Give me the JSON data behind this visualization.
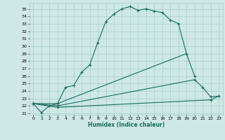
{
  "xlabel": "Humidex (Indice chaleur)",
  "xlim": [
    -0.5,
    23.5
  ],
  "ylim": [
    20.8,
    35.8
  ],
  "xticks": [
    0,
    1,
    2,
    3,
    4,
    5,
    6,
    7,
    8,
    9,
    10,
    11,
    12,
    13,
    14,
    15,
    16,
    17,
    18,
    19,
    20,
    21,
    22,
    23
  ],
  "yticks": [
    21,
    22,
    23,
    24,
    25,
    26,
    27,
    28,
    29,
    30,
    31,
    32,
    33,
    34,
    35
  ],
  "bg_color": "#cde8e5",
  "grid_color": "#aacfcc",
  "line_color": "#1a6b5e",
  "s1x": [
    0,
    1,
    2,
    3,
    4,
    5,
    6,
    7,
    8,
    9,
    10,
    11,
    12,
    13,
    14,
    15,
    16,
    17,
    18,
    19
  ],
  "s1y": [
    22.3,
    21.1,
    22.0,
    22.3,
    24.5,
    24.7,
    26.5,
    27.5,
    30.5,
    33.3,
    34.3,
    35.0,
    35.3,
    34.8,
    35.0,
    34.7,
    34.5,
    33.5,
    33.0,
    29.0
  ],
  "s2x": [
    0,
    3,
    19,
    20
  ],
  "s2y": [
    22.3,
    22.3,
    29.0,
    26.0
  ],
  "s3x": [
    0,
    3,
    20,
    21,
    22,
    23
  ],
  "s3y": [
    22.3,
    22.0,
    25.5,
    24.5,
    23.2,
    23.3
  ],
  "s4x": [
    0,
    3,
    22,
    23
  ],
  "s4y": [
    22.3,
    21.8,
    22.8,
    23.3
  ]
}
